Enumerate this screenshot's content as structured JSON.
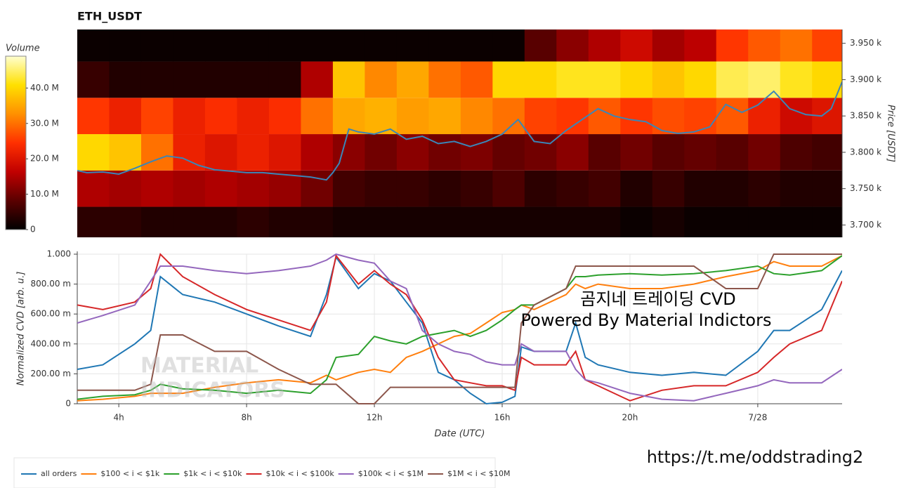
{
  "chart_data": [
    {
      "type": "heatmap",
      "title": "ETH_USDT",
      "x": [
        3.2,
        4.2,
        5.2,
        6.2,
        7.2,
        8.2,
        9.2,
        10.2,
        11.2,
        12.2,
        13.2,
        14.2,
        15.2,
        16.2,
        17.2,
        18.2,
        19.2,
        20.2,
        21.2,
        22.2,
        23.2,
        24.2,
        25.2,
        26.2
      ],
      "y": [
        3700,
        3750,
        3800,
        3850,
        3900,
        3950
      ],
      "z": [
        [
          4,
          4,
          3,
          3,
          3,
          4,
          3,
          3,
          2,
          2,
          2,
          2,
          2,
          2,
          2,
          2,
          2,
          1,
          2,
          1,
          1,
          1,
          1,
          1
        ],
        [
          15,
          14,
          15,
          14,
          15,
          14,
          13,
          10,
          6,
          5,
          5,
          4,
          5,
          7,
          4,
          5,
          6,
          3,
          5,
          3,
          3,
          4,
          3,
          3
        ],
        [
          40,
          38,
          30,
          22,
          20,
          22,
          20,
          15,
          12,
          10,
          12,
          10,
          11,
          9,
          10,
          12,
          8,
          10,
          8,
          9,
          8,
          10,
          7,
          6
        ],
        [
          25,
          22,
          26,
          22,
          24,
          22,
          24,
          30,
          35,
          36,
          34,
          35,
          32,
          30,
          26,
          25,
          28,
          25,
          27,
          26,
          28,
          22,
          18,
          20
        ],
        [
          5,
          3,
          3,
          3,
          3,
          3,
          3,
          15,
          38,
          32,
          35,
          30,
          28,
          40,
          40,
          42,
          42,
          40,
          38,
          40,
          44,
          45,
          42,
          40
        ],
        [
          1,
          1,
          1,
          1,
          1,
          1,
          1,
          1,
          1,
          1,
          1,
          1,
          1,
          1,
          8,
          12,
          15,
          18,
          14,
          16,
          25,
          28,
          30,
          26
        ]
      ],
      "colorscale": [
        "#000000",
        "#5a0000",
        "#c00000",
        "#ff3000",
        "#ff9000",
        "#ffe000",
        "#ffffd0"
      ],
      "zlim": [
        0,
        49
      ],
      "zlabel": "Volume",
      "zticks": [
        0,
        {
          "value": 10,
          "label": "10.0 M"
        },
        {
          "value": 20,
          "label": "20.0 M"
        },
        {
          "value": 30,
          "label": "30.0 M"
        },
        {
          "value": 40,
          "label": "40.0 M"
        }
      ],
      "xlim": [
        2.7,
        26.64
      ],
      "ylim": [
        3683,
        3969
      ],
      "ylabel": "Price [USDT]",
      "yticks": [
        {
          "value": 3700,
          "label": "3.700 k"
        },
        {
          "value": 3750,
          "label": "3.750 k"
        },
        {
          "value": 3800,
          "label": "3.800 k"
        },
        {
          "value": 3850,
          "label": "3.850 k"
        },
        {
          "value": 3900,
          "label": "3.900 k"
        },
        {
          "value": 3950,
          "label": "3.950 k"
        }
      ],
      "line": {
        "color": "#3a86b8",
        "x": [
          2.7,
          3.0,
          3.5,
          4.0,
          4.5,
          5.0,
          5.5,
          6.0,
          6.5,
          7.0,
          7.5,
          8.0,
          8.5,
          9.0,
          9.5,
          10.0,
          10.5,
          10.7,
          10.9,
          11.2,
          11.5,
          12.0,
          12.5,
          13.0,
          13.5,
          14.0,
          14.5,
          15.0,
          15.5,
          16.0,
          16.5,
          17.0,
          17.5,
          18.0,
          18.5,
          19.0,
          19.5,
          20.0,
          20.5,
          21.0,
          21.5,
          22.0,
          22.5,
          23.0,
          23.5,
          24.0,
          24.5,
          25.0,
          25.5,
          26.0,
          26.3,
          26.64
        ],
        "values": [
          3775,
          3772,
          3773,
          3770,
          3778,
          3787,
          3795,
          3792,
          3782,
          3776,
          3774,
          3772,
          3772,
          3770,
          3768,
          3766,
          3762,
          3772,
          3785,
          3832,
          3828,
          3825,
          3832,
          3818,
          3822,
          3812,
          3815,
          3808,
          3815,
          3825,
          3845,
          3815,
          3812,
          3830,
          3845,
          3860,
          3850,
          3845,
          3842,
          3830,
          3826,
          3828,
          3835,
          3866,
          3855,
          3865,
          3884,
          3860,
          3852,
          3850,
          3860,
          3897
        ]
      }
    },
    {
      "type": "line",
      "x": [
        2.7,
        3.5,
        4.5,
        5,
        5.3,
        6,
        7,
        8,
        9,
        10,
        10.5,
        10.8,
        11.5,
        12,
        12.5,
        13,
        13.5,
        14,
        14.5,
        15,
        15.5,
        16,
        16.4,
        16.6,
        17,
        18,
        18.3,
        18.6,
        19,
        20,
        21,
        22,
        23,
        24,
        24.5,
        25,
        26,
        26.64
      ],
      "series": [
        {
          "name": "all orders",
          "color": "#1f77b4",
          "values": [
            0.23,
            0.26,
            0.4,
            0.49,
            0.85,
            0.73,
            0.68,
            0.6,
            0.52,
            0.45,
            0.73,
            0.98,
            0.77,
            0.87,
            0.82,
            0.68,
            0.54,
            0.21,
            0.16,
            0.07,
            0.0,
            0.01,
            0.05,
            0.38,
            0.35,
            0.35,
            0.54,
            0.31,
            0.26,
            0.21,
            0.19,
            0.21,
            0.19,
            0.35,
            0.49,
            0.49,
            0.63,
            0.89
          ]
        },
        {
          "name": "$100 < i < $1k",
          "color": "#ff7f0e",
          "values": [
            0.02,
            0.03,
            0.05,
            0.07,
            0.07,
            0.07,
            0.11,
            0.14,
            0.16,
            0.14,
            0.19,
            0.16,
            0.21,
            0.23,
            0.21,
            0.31,
            0.35,
            0.4,
            0.45,
            0.47,
            0.54,
            0.61,
            0.63,
            0.66,
            0.63,
            0.73,
            0.8,
            0.77,
            0.8,
            0.77,
            0.77,
            0.8,
            0.85,
            0.89,
            0.95,
            0.92,
            0.92,
            0.99
          ]
        },
        {
          "name": "$1k < i < $10k",
          "color": "#2ca02c",
          "values": [
            0.03,
            0.05,
            0.06,
            0.09,
            0.13,
            0.1,
            0.09,
            0.07,
            0.09,
            0.07,
            0.16,
            0.31,
            0.33,
            0.45,
            0.42,
            0.4,
            0.45,
            0.47,
            0.49,
            0.45,
            0.49,
            0.56,
            0.63,
            0.66,
            0.66,
            0.77,
            0.85,
            0.85,
            0.86,
            0.87,
            0.86,
            0.87,
            0.89,
            0.92,
            0.87,
            0.86,
            0.89,
            0.99
          ]
        },
        {
          "name": "$10k < i < $100k",
          "color": "#d62728",
          "values": [
            0.66,
            0.63,
            0.68,
            0.77,
            1.0,
            0.85,
            0.73,
            0.63,
            0.56,
            0.49,
            0.68,
            0.99,
            0.8,
            0.89,
            0.8,
            0.73,
            0.56,
            0.31,
            0.16,
            0.14,
            0.12,
            0.12,
            0.09,
            0.31,
            0.26,
            0.26,
            0.35,
            0.16,
            0.12,
            0.02,
            0.09,
            0.12,
            0.12,
            0.21,
            0.31,
            0.4,
            0.49,
            0.82
          ]
        },
        {
          "name": "$100k < i < $1M",
          "color": "#9467bd",
          "values": [
            0.54,
            0.59,
            0.66,
            0.82,
            0.92,
            0.92,
            0.89,
            0.87,
            0.89,
            0.92,
            0.96,
            1.0,
            0.96,
            0.94,
            0.82,
            0.77,
            0.49,
            0.4,
            0.35,
            0.33,
            0.28,
            0.26,
            0.26,
            0.4,
            0.35,
            0.35,
            0.23,
            0.16,
            0.14,
            0.07,
            0.03,
            0.02,
            0.07,
            0.12,
            0.16,
            0.14,
            0.14,
            0.23
          ]
        },
        {
          "name": "$1M < i < $10M",
          "color": "#8c564b",
          "values": [
            0.09,
            0.09,
            0.09,
            0.13,
            0.46,
            0.46,
            0.35,
            0.35,
            0.23,
            0.13,
            0.13,
            0.13,
            0.0,
            0.0,
            0.11,
            0.11,
            0.11,
            0.11,
            0.11,
            0.11,
            0.11,
            0.11,
            0.11,
            0.54,
            0.66,
            0.77,
            0.92,
            0.92,
            0.92,
            0.92,
            0.92,
            0.92,
            0.77,
            0.77,
            1.0,
            1.0,
            1.0,
            1.0
          ]
        }
      ],
      "xlim": [
        2.7,
        26.64
      ],
      "xticks": [
        {
          "value": 4,
          "label": "4h"
        },
        {
          "value": 8,
          "label": "8h"
        },
        {
          "value": 12,
          "label": "12h"
        },
        {
          "value": 16,
          "label": "16h"
        },
        {
          "value": 20,
          "label": "20h"
        },
        {
          "value": 24,
          "label": "7/28"
        }
      ],
      "xlabel": "Date (UTC)",
      "ylim": [
        0,
        1
      ],
      "yticks": [
        0,
        {
          "value": 0.2,
          "label": "200.00 m"
        },
        {
          "value": 0.4,
          "label": "400.00 m"
        },
        {
          "value": 0.6,
          "label": "600.00 m"
        },
        {
          "value": 0.8,
          "label": "800.00 m"
        },
        {
          "value": 1,
          "label": "1.000"
        }
      ],
      "ylabel": "Normalized CVD [arb. u.]",
      "grid": true,
      "legend": "bottom",
      "annotations": [
        "MATERIAL",
        "INDICATORS",
        "곰지네 트레이딩 CVD",
        "Powered By Material Indictors",
        "https://t.me/oddstrading2"
      ]
    }
  ]
}
